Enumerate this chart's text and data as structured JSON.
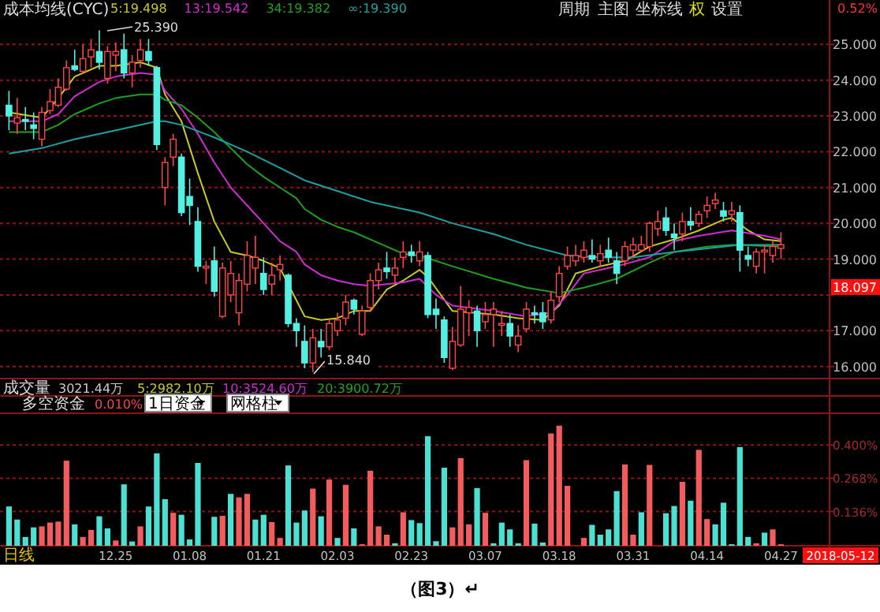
{
  "chart_data": [
    {
      "type": "candlestick",
      "title": "成本均线(CYC)",
      "tick_labels": "y",
      "grid": "y",
      "legend": "top left",
      "categories": [
        null,
        null,
        null,
        null,
        null,
        null,
        null,
        null,
        null,
        null,
        null,
        null,
        null,
        null,
        null,
        null,
        null,
        null,
        null,
        null,
        null,
        null,
        null,
        null,
        null,
        null,
        null,
        null,
        null,
        null,
        null,
        null,
        null,
        null,
        null,
        null,
        null,
        null,
        null,
        null,
        null,
        null,
        null,
        null,
        null,
        null,
        null,
        null,
        null,
        null,
        null,
        null,
        null,
        null,
        null,
        null,
        null,
        null,
        null,
        null,
        null,
        null,
        null,
        null,
        null,
        null,
        null,
        null,
        null,
        null,
        null,
        null,
        null,
        null,
        null,
        null,
        null,
        null,
        null,
        null,
        null,
        null,
        null,
        null,
        null,
        null,
        null,
        null,
        null,
        null,
        null,
        null,
        null,
        null,
        null
      ],
      "ylim": [
        15.75,
        26.24
      ],
      "yticks": [
        {
          "value": 16,
          "label": "16.000"
        },
        {
          "value": 17,
          "label": "17.000"
        },
        {
          "value": 18,
          "label": null
        },
        {
          "value": 19,
          "label": "19.000"
        },
        {
          "value": 20,
          "label": "20.000"
        },
        {
          "value": 21,
          "label": "21.000"
        },
        {
          "value": 22,
          "label": "22.000"
        },
        {
          "value": 23,
          "label": "23.000"
        },
        {
          "value": 24,
          "label": "24.000"
        },
        {
          "value": 25,
          "label": "25.000"
        }
      ],
      "ohlc": [
        [
          23.3,
          23.7,
          22.6,
          23.0
        ],
        [
          22.8,
          23.5,
          22.5,
          22.95
        ],
        [
          22.9,
          23.25,
          22.6,
          22.85
        ],
        [
          22.75,
          23.1,
          22.35,
          22.65
        ],
        [
          22.35,
          23.25,
          22.15,
          23.1
        ],
        [
          23.15,
          23.75,
          23.05,
          23.4
        ],
        [
          23.3,
          24.05,
          23.25,
          23.8
        ],
        [
          23.75,
          24.55,
          23.7,
          24.35
        ],
        [
          24.4,
          24.85,
          24.25,
          24.3
        ],
        [
          24.25,
          25.0,
          24.2,
          24.6
        ],
        [
          24.65,
          25.15,
          24.35,
          24.85
        ],
        [
          24.8,
          25.39,
          24.3,
          24.5
        ],
        [
          24.05,
          24.95,
          23.9,
          24.8
        ],
        [
          24.7,
          25.05,
          24.25,
          24.8
        ],
        [
          24.85,
          25.3,
          24.05,
          24.2
        ],
        [
          24.2,
          24.7,
          23.8,
          24.5
        ],
        [
          24.55,
          25.15,
          24.35,
          24.85
        ],
        [
          24.8,
          25.15,
          24.4,
          24.55
        ],
        [
          24.35,
          24.4,
          22.05,
          22.2
        ],
        [
          21.0,
          21.85,
          20.5,
          21.7
        ],
        [
          21.85,
          22.5,
          21.6,
          22.35
        ],
        [
          21.85,
          21.95,
          20.2,
          20.3
        ],
        [
          20.75,
          21.25,
          19.95,
          20.5
        ],
        [
          20.05,
          20.45,
          18.65,
          18.8
        ],
        [
          18.75,
          18.95,
          18.3,
          18.8
        ],
        [
          18.95,
          19.35,
          17.95,
          18.1
        ],
        [
          17.4,
          18.9,
          17.35,
          18.75
        ],
        [
          18.0,
          18.95,
          17.8,
          18.6
        ],
        [
          17.5,
          18.6,
          17.15,
          18.4
        ],
        [
          18.3,
          19.5,
          18.1,
          19.1
        ],
        [
          18.75,
          19.65,
          18.3,
          19.05
        ],
        [
          18.6,
          19.05,
          18.0,
          18.15
        ],
        [
          18.3,
          18.9,
          18.0,
          18.55
        ],
        [
          18.7,
          19.1,
          18.4,
          18.85
        ],
        [
          18.55,
          18.6,
          17.1,
          17.2
        ],
        [
          17.2,
          17.35,
          16.55,
          17.0
        ],
        [
          16.7,
          17.15,
          15.95,
          16.1
        ],
        [
          16.1,
          17.05,
          15.84,
          16.8
        ],
        [
          16.7,
          17.05,
          16.25,
          16.55
        ],
        [
          16.55,
          17.3,
          16.45,
          17.2
        ],
        [
          17.0,
          17.5,
          16.85,
          17.3
        ],
        [
          17.35,
          18.0,
          17.15,
          17.8
        ],
        [
          17.85,
          17.9,
          17.45,
          17.6
        ],
        [
          16.9,
          17.7,
          16.85,
          17.55
        ],
        [
          17.65,
          18.6,
          17.55,
          18.4
        ],
        [
          18.4,
          18.9,
          18.15,
          18.7
        ],
        [
          18.75,
          19.2,
          18.45,
          18.65
        ],
        [
          18.55,
          19.05,
          18.3,
          18.75
        ],
        [
          19.05,
          19.5,
          18.75,
          19.2
        ],
        [
          19.2,
          19.4,
          18.9,
          19.1
        ],
        [
          18.95,
          19.5,
          18.8,
          19.2
        ],
        [
          19.1,
          19.2,
          17.35,
          17.45
        ],
        [
          17.6,
          17.9,
          17.05,
          17.45
        ],
        [
          17.3,
          17.4,
          16.1,
          16.25
        ],
        [
          15.95,
          17.1,
          15.9,
          16.7
        ],
        [
          16.6,
          18.25,
          16.55,
          17.6
        ],
        [
          17.5,
          17.85,
          16.85,
          17.65
        ],
        [
          17.55,
          17.7,
          16.55,
          17.0
        ],
        [
          17.25,
          17.8,
          17.05,
          17.45
        ],
        [
          17.45,
          17.8,
          16.55,
          17.6
        ],
        [
          17.15,
          17.55,
          16.85,
          17.2
        ],
        [
          17.2,
          17.45,
          16.55,
          16.85
        ],
        [
          16.6,
          17.15,
          16.4,
          16.85
        ],
        [
          17.05,
          17.8,
          16.95,
          17.6
        ],
        [
          17.5,
          17.7,
          17.2,
          17.45
        ],
        [
          17.5,
          17.8,
          17.05,
          17.25
        ],
        [
          17.3,
          18.1,
          17.2,
          17.85
        ],
        [
          17.95,
          18.8,
          17.8,
          18.6
        ],
        [
          18.8,
          19.35,
          18.7,
          19.1
        ],
        [
          18.95,
          19.4,
          18.8,
          19.1
        ],
        [
          19.05,
          19.5,
          18.9,
          19.25
        ],
        [
          19.1,
          19.55,
          18.9,
          19.0
        ],
        [
          18.95,
          19.4,
          18.8,
          19.15
        ],
        [
          19.25,
          19.6,
          18.9,
          19.05
        ],
        [
          18.95,
          19.2,
          18.3,
          18.6
        ],
        [
          18.95,
          19.5,
          18.8,
          19.35
        ],
        [
          19.25,
          19.6,
          19.05,
          19.4
        ],
        [
          19.25,
          19.65,
          19.2,
          19.4
        ],
        [
          19.35,
          20.05,
          19.2,
          20.0
        ],
        [
          19.85,
          20.35,
          19.65,
          20.05
        ],
        [
          20.15,
          20.45,
          19.65,
          19.8
        ],
        [
          19.7,
          20.0,
          19.25,
          19.6
        ],
        [
          19.7,
          20.3,
          19.5,
          20.05
        ],
        [
          20.05,
          20.45,
          19.8,
          19.95
        ],
        [
          20.0,
          20.35,
          19.9,
          20.25
        ],
        [
          20.35,
          20.75,
          20.15,
          20.5
        ],
        [
          20.55,
          20.85,
          20.4,
          20.65
        ],
        [
          20.35,
          20.6,
          20.05,
          20.2
        ],
        [
          20.25,
          20.6,
          20.05,
          20.35
        ],
        [
          20.3,
          20.5,
          18.65,
          19.25
        ],
        [
          19.1,
          19.35,
          18.8,
          19.0
        ],
        [
          18.8,
          19.3,
          18.6,
          19.2
        ],
        [
          19.2,
          19.4,
          18.6,
          19.25
        ],
        [
          19.1,
          19.5,
          18.9,
          19.35
        ],
        [
          19.3,
          19.75,
          19.0,
          19.4
        ]
      ],
      "series": [
        {
          "type": "line",
          "name": "5:19.498",
          "color": "#c8c81e",
          "values": [
            23.1,
            null,
            null,
            null,
            22.95,
            null,
            23.5,
            null,
            24.1,
            null,
            null,
            24.4,
            null,
            24.4,
            null,
            null,
            24.5,
            null,
            24.35,
            23.6,
            null,
            22.85,
            null,
            21.4,
            null,
            20.05,
            null,
            19.2,
            null,
            19.1,
            null,
            18.95,
            null,
            18.75,
            null,
            17.85,
            17.4,
            null,
            17.3,
            null,
            17.35,
            null,
            17.55,
            null,
            17.55,
            null,
            18.15,
            null,
            18.4,
            null,
            18.7,
            18.5,
            null,
            null,
            17.55,
            null,
            null,
            null,
            null,
            17.45,
            null,
            null,
            17.35,
            null,
            null,
            17.3,
            null,
            17.7,
            null,
            18.6,
            null,
            null,
            18.8,
            null,
            null,
            18.95,
            null,
            null,
            19.35,
            null,
            null,
            19.55,
            null,
            null,
            19.8,
            null,
            null,
            20.1,
            20.15,
            null,
            19.8,
            null,
            19.55,
            null,
            19.5
          ]
        },
        {
          "type": "line",
          "name": "13:19.542",
          "color": "#d22ad2",
          "values": [
            22.85,
            null,
            null,
            null,
            22.85,
            null,
            23.05,
            null,
            23.55,
            null,
            null,
            23.95,
            null,
            24.1,
            null,
            null,
            24.2,
            null,
            24.15,
            23.7,
            null,
            23.2,
            null,
            22.5,
            null,
            21.7,
            null,
            21.0,
            null,
            20.5,
            null,
            20.0,
            null,
            19.5,
            null,
            19.2,
            18.85,
            null,
            18.55,
            null,
            18.4,
            null,
            18.3,
            null,
            18.25,
            null,
            18.3,
            null,
            18.35,
            null,
            18.45,
            null,
            18.0,
            null,
            17.7,
            null,
            null,
            null,
            null,
            17.55,
            null,
            null,
            null,
            17.4,
            null,
            null,
            17.5,
            null,
            18.0,
            null,
            18.6,
            null,
            null,
            null,
            18.8,
            null,
            null,
            null,
            19.05,
            null,
            null,
            19.5,
            null,
            null,
            19.65,
            null,
            null,
            null,
            19.8,
            null,
            null,
            null,
            19.65,
            null,
            19.55
          ]
        },
        {
          "type": "line",
          "name": "34:19.382",
          "color": "#1ea01e",
          "values": [
            22.55,
            null,
            null,
            null,
            22.55,
            null,
            22.75,
            null,
            23.05,
            null,
            null,
            23.35,
            null,
            23.5,
            null,
            null,
            23.6,
            null,
            23.6,
            23.45,
            null,
            23.3,
            null,
            22.95,
            null,
            22.55,
            null,
            22.1,
            null,
            21.65,
            null,
            21.3,
            null,
            21.0,
            null,
            20.7,
            20.4,
            null,
            20.1,
            null,
            19.9,
            null,
            19.75,
            null,
            19.55,
            null,
            19.35,
            null,
            19.15,
            null,
            19.1,
            null,
            null,
            null,
            18.8,
            null,
            null,
            null,
            null,
            18.45,
            null,
            null,
            null,
            18.2,
            null,
            null,
            null,
            18.05,
            null,
            null,
            18.2,
            null,
            null,
            null,
            18.45,
            null,
            null,
            null,
            18.9,
            null,
            null,
            19.2,
            null,
            null,
            null,
            19.35,
            null,
            null,
            19.4,
            null,
            null,
            null,
            null,
            null,
            19.35
          ]
        },
        {
          "type": "line",
          "name": "∞:19.390",
          "color": "#1ea0a0",
          "values": [
            21.95,
            null,
            null,
            null,
            22.1,
            null,
            null,
            null,
            22.35,
            null,
            null,
            null,
            null,
            22.6,
            null,
            null,
            null,
            null,
            22.85,
            22.85,
            null,
            22.75,
            null,
            null,
            null,
            22.4,
            null,
            null,
            null,
            22.0,
            null,
            null,
            null,
            21.55,
            null,
            null,
            21.2,
            null,
            null,
            null,
            20.9,
            null,
            null,
            null,
            20.6,
            null,
            null,
            null,
            20.4,
            null,
            20.3,
            null,
            null,
            null,
            20.0,
            null,
            null,
            null,
            null,
            19.7,
            null,
            null,
            null,
            19.4,
            null,
            null,
            null,
            null,
            19.1,
            null,
            null,
            null,
            19.05,
            null,
            null,
            null,
            19.05,
            null,
            null,
            null,
            null,
            19.2,
            null,
            null,
            null,
            null,
            null,
            19.35,
            null,
            19.4,
            null,
            null,
            null,
            null,
            19.4
          ]
        }
      ],
      "annotations": [
        "25.390",
        "15.840",
        "18.097",
        "周期",
        "主图",
        "坐标线",
        "权",
        "设置",
        "0.52%"
      ]
    },
    {
      "type": "bar",
      "title": "多空资金",
      "grid": "y",
      "categories": [
        null,
        null,
        null,
        null,
        null,
        null,
        null,
        null,
        null,
        null,
        null,
        null,
        null,
        "12.25",
        null,
        null,
        null,
        null,
        null,
        null,
        null,
        null,
        "01.08",
        null,
        null,
        null,
        null,
        null,
        null,
        null,
        null,
        "01.21",
        null,
        null,
        null,
        null,
        null,
        null,
        null,
        null,
        "02.03",
        null,
        null,
        null,
        null,
        null,
        null,
        null,
        null,
        "02.23",
        null,
        null,
        null,
        null,
        null,
        null,
        null,
        null,
        "03.07",
        null,
        null,
        null,
        null,
        null,
        null,
        null,
        null,
        "03.18",
        null,
        null,
        null,
        null,
        null,
        null,
        null,
        null,
        "03.31",
        null,
        null,
        null,
        null,
        null,
        null,
        null,
        null,
        "04.14",
        null,
        null,
        null,
        null,
        null,
        null,
        null,
        null,
        "04.27"
      ],
      "ylim": [
        0,
        0.52
      ],
      "yticks": [
        {
          "value": 0.136,
          "label": "0.136%"
        },
        {
          "value": 0.268,
          "label": "0.268%"
        },
        {
          "value": 0.4,
          "label": "0.400%"
        }
      ],
      "values": [
        0.156,
        0.104,
        0.035,
        0.073,
        0.077,
        0.092,
        0.096,
        0.338,
        0.085,
        0.035,
        0.063,
        0.117,
        0.069,
        0.021,
        0.244,
        0.017,
        0.077,
        0.156,
        0.367,
        0.185,
        0.131,
        0.123,
        0.025,
        0.329,
        0,
        0.115,
        0.119,
        0.206,
        0.192,
        0.206,
        0.104,
        0.123,
        0.094,
        0.031,
        0.319,
        0.092,
        0.14,
        0.227,
        0.117,
        0.263,
        0.031,
        0.242,
        0.069,
        0.006,
        0.298,
        0.077,
        0.044,
        0.01,
        0.133,
        0.102,
        0.09,
        0.435,
        0.018,
        0.31,
        0.073,
        0.348,
        0.085,
        0.229,
        0.131,
        0.01,
        0.092,
        0.065,
        0.01,
        0.34,
        0.088,
        0.013,
        0.446,
        0.477,
        0.238,
        0,
        0.031,
        0.083,
        0.044,
        0.065,
        0.217,
        0.323,
        0.044,
        0.133,
        0.321,
        0,
        0.129,
        0.158,
        0.254,
        0.179,
        0.381,
        0.106,
        0.085,
        0.171,
        0.006,
        0.392,
        0.035,
        0.01,
        0.052,
        0.065,
        0.006
      ],
      "colors": [
        "#4ce0d2",
        "#4ce0d2",
        "#4ce0d2",
        "#4ce0d2",
        "#f25c5c",
        "#f25c5c",
        "#f25c5c",
        "#f25c5c",
        "#4ce0d2",
        "#f25c5c",
        "#f25c5c",
        "#4ce0d2",
        "#4ce0d2",
        "#f25c5c",
        "#4ce0d2",
        "#4ce0d2",
        "#f25c5c",
        "#4ce0d2",
        "#4ce0d2",
        "#4ce0d2",
        "#f25c5c",
        "#4ce0d2",
        "#4ce0d2",
        "#4ce0d2",
        "#4ce0d2",
        "#4ce0d2",
        "#f25c5c",
        "#4ce0d2",
        "#f25c5c",
        "#f25c5c",
        "#4ce0d2",
        "#4ce0d2",
        "#f25c5c",
        "#f25c5c",
        "#4ce0d2",
        "#4ce0d2",
        "#4ce0d2",
        "#f25c5c",
        "#4ce0d2",
        "#f25c5c",
        "#4ce0d2",
        "#f25c5c",
        "#4ce0d2",
        "#f25c5c",
        "#f25c5c",
        "#f25c5c",
        "#f25c5c",
        "#4ce0d2",
        "#f25c5c",
        "#4ce0d2",
        "#4ce0d2",
        "#4ce0d2",
        "#4ce0d2",
        "#4ce0d2",
        "#f25c5c",
        "#f25c5c",
        "#f25c5c",
        "#4ce0d2",
        "#f25c5c",
        "#4ce0d2",
        "#4ce0d2",
        "#4ce0d2",
        "#4ce0d2",
        "#f25c5c",
        "#4ce0d2",
        "#4ce0d2",
        "#f25c5c",
        "#f25c5c",
        "#f25c5c",
        "#f25c5c",
        "#f25c5c",
        "#4ce0d2",
        "#4ce0d2",
        "#4ce0d2",
        "#4ce0d2",
        "#f25c5c",
        "#f25c5c",
        "#4ce0d2",
        "#f25c5c",
        "#4ce0d2",
        "#4ce0d2",
        "#4ce0d2",
        "#f25c5c",
        "#4ce0d2",
        "#f25c5c",
        "#f25c5c",
        "#4ce0d2",
        "#4ce0d2",
        "#4ce0d2",
        "#4ce0d2",
        "#4ce0d2",
        "#f25c5c",
        "#4ce0d2",
        "#f25c5c",
        "#f25c5c"
      ],
      "annotations": [
        "0.010%",
        "1日资金",
        "网格柱",
        "成交量",
        "3021.44万",
        "5:2982.10万",
        "10:3524.60万",
        "20:3900.72万",
        "日线",
        "2018-05-12",
        "（图3）↵"
      ]
    }
  ]
}
